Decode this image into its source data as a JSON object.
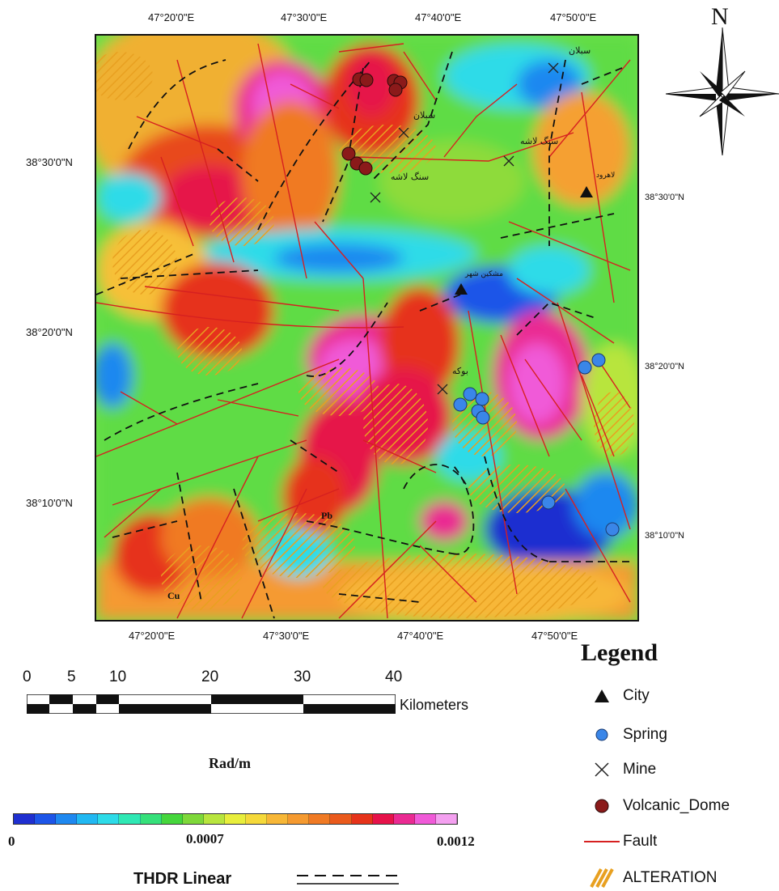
{
  "map": {
    "lon_labels": [
      "47°20'0\"E",
      "47°30'0\"E",
      "47°40'0\"E",
      "47°50'0\"E"
    ],
    "left_lat_labels": [
      "38°30'0\"N",
      "38°20'0\"N",
      "38°10'0\"N"
    ],
    "right_lat_labels": [
      "38°30'0\"N",
      "38°20'0\"N",
      "38°10'0\"N"
    ],
    "place_labels": {
      "pb": "Pb",
      "cu": "Cu",
      "sablan_top": "سبلان",
      "sablan": "سبلان",
      "sangelashe_east": "سنگ لاشه",
      "sangelashe_west": "سنگ لاشه",
      "meshkin": "مشکین شهر",
      "lahrud": "لاهرود",
      "booke": "بوکه"
    }
  },
  "north_arrow": {
    "letter": "N"
  },
  "scale_bar": {
    "ticks": [
      "0",
      "5",
      "10",
      "20",
      "30",
      "40"
    ],
    "unit": "Kilometers"
  },
  "color_scale": {
    "title": "Rad/m",
    "min_label": "0",
    "mid_label": "0.0007",
    "max_label": "0.0012",
    "colors": [
      "#1f2fd0",
      "#1d55e8",
      "#1e88f0",
      "#21b8f2",
      "#2ddbe8",
      "#2fe8b4",
      "#35e07a",
      "#45d63c",
      "#7ed83a",
      "#b8e53e",
      "#e8ee3c",
      "#f5d93a",
      "#f7b737",
      "#f59a30",
      "#f07a24",
      "#ea5a1c",
      "#e6331a",
      "#e6124a",
      "#ea2a92",
      "#f05ad8",
      "#f4a0f0"
    ]
  },
  "thdr": {
    "label": "THDR Linear"
  },
  "legend": {
    "title": "Legend",
    "items": [
      {
        "symbol": "city",
        "label": "City"
      },
      {
        "symbol": "spring",
        "label": "Spring"
      },
      {
        "symbol": "mine",
        "label": "Mine"
      },
      {
        "symbol": "volcanic-dome",
        "label": "Volcanic_Dome"
      },
      {
        "symbol": "fault",
        "label": "Fault"
      },
      {
        "symbol": "alteration",
        "label": "ALTERATION"
      }
    ],
    "colors": {
      "city": "#111111",
      "spring": "#3a86e8",
      "volcanic_dome": "#8b1a1a",
      "fault": "#d62020",
      "alteration": "#e8a020"
    }
  }
}
